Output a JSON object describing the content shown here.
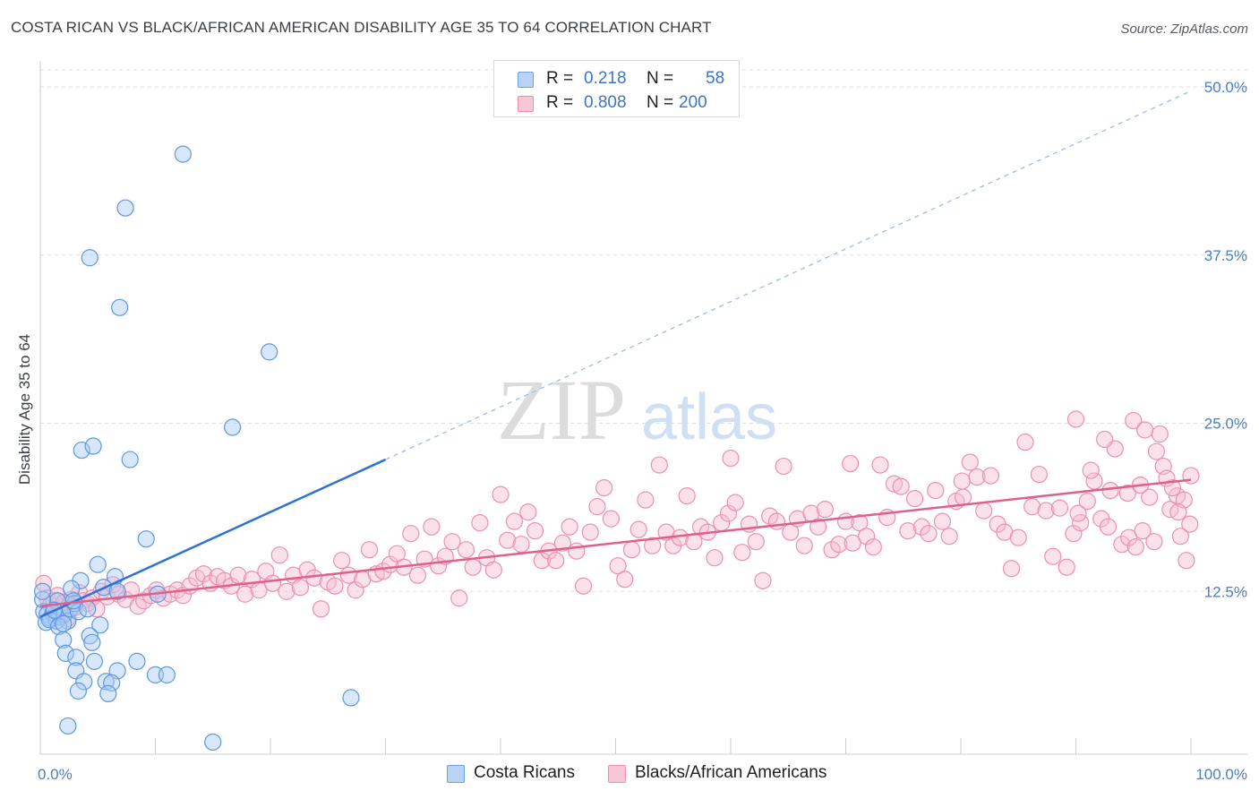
{
  "title": "COSTA RICAN VS BLACK/AFRICAN AMERICAN DISABILITY AGE 35 TO 64 CORRELATION CHART",
  "source": "Source: ZipAtlas.com",
  "watermark": {
    "zip": "ZIP",
    "atlas": "atlas"
  },
  "legend": {
    "rows": [
      {
        "r_label": "R =",
        "r_value": "0.218",
        "n_label": "N =",
        "n_value": "58",
        "color": "#7fb0ec"
      },
      {
        "r_label": "R =",
        "r_value": "0.808",
        "n_label": "N =",
        "n_value": "200",
        "color": "#f3a3bf"
      }
    ]
  },
  "bottom_legend": [
    {
      "label": "Costa Ricans",
      "color": "#7fb0ec"
    },
    {
      "label": "Blacks/African Americans",
      "color": "#f3a3bf"
    }
  ],
  "chart_data": {
    "type": "scatter",
    "title": "COSTA RICAN VS BLACK/AFRICAN AMERICAN DISABILITY AGE 35 TO 64 CORRELATION CHART",
    "xlabel": "",
    "ylabel": "Disability Age 35 to 64",
    "xlim": [
      0,
      100
    ],
    "ylim": [
      0,
      50
    ],
    "x_tick_labels": [
      "0.0%",
      "100.0%"
    ],
    "y_ticks": [
      12.5,
      25.0,
      37.5,
      50.0
    ],
    "y_tick_labels": [
      "12.5%",
      "25.0%",
      "37.5%",
      "50.0%"
    ],
    "grid": true,
    "legend_position": "top-center",
    "series": [
      {
        "name": "Costa Ricans",
        "color": "#7fb0ec",
        "line_color": "#2f72d6",
        "trend": {
          "x0": 0,
          "y0": 10.6,
          "x1": 30,
          "y1": 22.3,
          "dashed_to_x": 100,
          "dashed_to_y": 49.7
        },
        "points": [
          [
            12.4,
            45.0
          ],
          [
            7.4,
            41.0
          ],
          [
            4.3,
            37.3
          ],
          [
            6.9,
            33.6
          ],
          [
            19.9,
            30.3
          ],
          [
            16.7,
            24.7
          ],
          [
            3.6,
            23.0
          ],
          [
            4.6,
            23.3
          ],
          [
            7.8,
            22.3
          ],
          [
            9.2,
            16.4
          ],
          [
            5.0,
            14.5
          ],
          [
            3.5,
            13.3
          ],
          [
            6.5,
            13.6
          ],
          [
            1.5,
            11.8
          ],
          [
            2.7,
            12.7
          ],
          [
            5.5,
            12.8
          ],
          [
            0.3,
            11.0
          ],
          [
            0.6,
            10.8
          ],
          [
            0.9,
            10.5
          ],
          [
            1.1,
            10.9
          ],
          [
            1.4,
            10.3
          ],
          [
            1.7,
            10.6
          ],
          [
            2.1,
            10.8
          ],
          [
            2.4,
            10.3
          ],
          [
            2.6,
            11.2
          ],
          [
            3.0,
            11.6
          ],
          [
            3.3,
            11.0
          ],
          [
            0.5,
            10.2
          ],
          [
            0.8,
            10.4
          ],
          [
            1.2,
            11.1
          ],
          [
            1.6,
            9.9
          ],
          [
            2.0,
            10.1
          ],
          [
            2.9,
            11.8
          ],
          [
            4.1,
            11.2
          ],
          [
            0.2,
            11.9
          ],
          [
            5.2,
            10.0
          ],
          [
            4.3,
            9.2
          ],
          [
            6.7,
            12.5
          ],
          [
            10.2,
            12.3
          ],
          [
            2.0,
            8.9
          ],
          [
            4.5,
            8.7
          ],
          [
            2.2,
            7.9
          ],
          [
            3.1,
            7.6
          ],
          [
            6.7,
            6.6
          ],
          [
            3.1,
            6.6
          ],
          [
            4.7,
            7.3
          ],
          [
            8.4,
            7.3
          ],
          [
            10.0,
            6.3
          ],
          [
            11.0,
            6.3
          ],
          [
            5.7,
            5.8
          ],
          [
            3.8,
            5.8
          ],
          [
            6.2,
            5.7
          ],
          [
            3.3,
            5.1
          ],
          [
            5.9,
            4.9
          ],
          [
            2.4,
            2.5
          ],
          [
            27.0,
            4.6
          ],
          [
            15.0,
            1.3
          ],
          [
            0.2,
            12.5
          ]
        ]
      },
      {
        "name": "Blacks/African Americans",
        "color": "#f3a3bf",
        "line_color": "#e0608d",
        "trend": {
          "x0": 0,
          "y0": 11.4,
          "x1": 100,
          "y1": 20.8
        },
        "points": [
          [
            0.3,
            13.1
          ],
          [
            0.6,
            12.0
          ],
          [
            0.9,
            11.5
          ],
          [
            1.2,
            11.8
          ],
          [
            1.5,
            12.2
          ],
          [
            1.8,
            11.0
          ],
          [
            2.1,
            11.7
          ],
          [
            2.4,
            10.5
          ],
          [
            2.7,
            11.9
          ],
          [
            3.0,
            11.3
          ],
          [
            3.4,
            12.4
          ],
          [
            3.7,
            11.8
          ],
          [
            4.1,
            11.6
          ],
          [
            4.5,
            12.0
          ],
          [
            4.9,
            11.2
          ],
          [
            5.3,
            12.5
          ],
          [
            5.8,
            12.1
          ],
          [
            6.3,
            13.0
          ],
          [
            6.8,
            12.3
          ],
          [
            7.4,
            11.9
          ],
          [
            7.9,
            12.6
          ],
          [
            8.5,
            11.4
          ],
          [
            9.0,
            11.8
          ],
          [
            9.6,
            12.2
          ],
          [
            10.1,
            12.6
          ],
          [
            10.7,
            12.0
          ],
          [
            11.3,
            12.3
          ],
          [
            11.9,
            12.6
          ],
          [
            12.4,
            12.2
          ],
          [
            13.0,
            12.9
          ],
          [
            13.6,
            13.5
          ],
          [
            14.2,
            13.8
          ],
          [
            14.8,
            13.1
          ],
          [
            15.4,
            13.6
          ],
          [
            16.0,
            13.3
          ],
          [
            16.6,
            12.9
          ],
          [
            17.2,
            13.7
          ],
          [
            17.8,
            12.3
          ],
          [
            18.4,
            13.4
          ],
          [
            19.0,
            12.6
          ],
          [
            19.6,
            14.0
          ],
          [
            20.2,
            13.1
          ],
          [
            20.8,
            15.2
          ],
          [
            21.4,
            12.5
          ],
          [
            22.0,
            13.7
          ],
          [
            22.6,
            12.8
          ],
          [
            23.2,
            14.1
          ],
          [
            23.8,
            13.5
          ],
          [
            24.4,
            11.2
          ],
          [
            25.0,
            13.2
          ],
          [
            25.6,
            12.9
          ],
          [
            26.2,
            14.8
          ],
          [
            26.8,
            13.7
          ],
          [
            27.4,
            12.6
          ],
          [
            28.0,
            13.4
          ],
          [
            28.6,
            15.6
          ],
          [
            29.2,
            13.8
          ],
          [
            29.8,
            14.0
          ],
          [
            30.4,
            14.5
          ],
          [
            31.0,
            15.3
          ],
          [
            31.6,
            14.3
          ],
          [
            32.2,
            16.8
          ],
          [
            32.8,
            13.7
          ],
          [
            33.4,
            14.9
          ],
          [
            34.0,
            17.3
          ],
          [
            34.6,
            14.4
          ],
          [
            35.2,
            15.1
          ],
          [
            35.8,
            16.2
          ],
          [
            36.4,
            12.0
          ],
          [
            37.0,
            15.6
          ],
          [
            37.6,
            14.3
          ],
          [
            38.2,
            17.6
          ],
          [
            38.8,
            15.0
          ],
          [
            39.4,
            14.1
          ],
          [
            40.0,
            19.7
          ],
          [
            40.6,
            16.3
          ],
          [
            41.2,
            17.7
          ],
          [
            41.8,
            16.0
          ],
          [
            42.4,
            18.4
          ],
          [
            43.0,
            17.0
          ],
          [
            43.6,
            14.8
          ],
          [
            44.2,
            15.5
          ],
          [
            44.8,
            14.8
          ],
          [
            45.4,
            16.1
          ],
          [
            46.0,
            17.3
          ],
          [
            46.6,
            15.5
          ],
          [
            47.2,
            12.9
          ],
          [
            47.8,
            16.9
          ],
          [
            48.4,
            18.8
          ],
          [
            49.0,
            20.2
          ],
          [
            49.6,
            17.9
          ],
          [
            50.2,
            14.4
          ],
          [
            50.8,
            13.4
          ],
          [
            51.4,
            15.6
          ],
          [
            52.0,
            17.1
          ],
          [
            52.6,
            19.3
          ],
          [
            53.2,
            15.9
          ],
          [
            53.8,
            21.9
          ],
          [
            54.4,
            16.9
          ],
          [
            55.0,
            15.9
          ],
          [
            55.6,
            16.5
          ],
          [
            56.2,
            19.6
          ],
          [
            56.8,
            16.2
          ],
          [
            57.4,
            17.3
          ],
          [
            58.0,
            16.9
          ],
          [
            58.6,
            15.0
          ],
          [
            59.2,
            17.6
          ],
          [
            59.8,
            18.3
          ],
          [
            60.4,
            19.1
          ],
          [
            61.0,
            15.4
          ],
          [
            61.6,
            17.5
          ],
          [
            62.2,
            16.2
          ],
          [
            62.8,
            13.3
          ],
          [
            63.4,
            18.1
          ],
          [
            64.0,
            17.7
          ],
          [
            64.6,
            21.8
          ],
          [
            65.2,
            16.9
          ],
          [
            65.8,
            17.9
          ],
          [
            66.4,
            15.9
          ],
          [
            67.0,
            18.3
          ],
          [
            67.6,
            17.3
          ],
          [
            68.2,
            18.6
          ],
          [
            68.8,
            15.6
          ],
          [
            69.4,
            16.0
          ],
          [
            70.0,
            17.7
          ],
          [
            70.6,
            16.1
          ],
          [
            71.2,
            17.6
          ],
          [
            71.8,
            16.6
          ],
          [
            72.4,
            15.8
          ],
          [
            73.0,
            21.9
          ],
          [
            73.6,
            18.0
          ],
          [
            74.2,
            20.5
          ],
          [
            74.8,
            20.3
          ],
          [
            75.4,
            17.0
          ],
          [
            76.0,
            19.4
          ],
          [
            76.6,
            17.3
          ],
          [
            77.2,
            16.8
          ],
          [
            77.8,
            20.0
          ],
          [
            78.4,
            17.7
          ],
          [
            79.0,
            16.6
          ],
          [
            79.6,
            19.2
          ],
          [
            80.2,
            19.5
          ],
          [
            80.8,
            22.1
          ],
          [
            81.4,
            21.0
          ],
          [
            82.0,
            18.5
          ],
          [
            82.6,
            21.1
          ],
          [
            83.2,
            17.5
          ],
          [
            83.8,
            16.9
          ],
          [
            84.4,
            14.2
          ],
          [
            85.0,
            16.5
          ],
          [
            85.6,
            23.6
          ],
          [
            86.2,
            18.8
          ],
          [
            86.8,
            21.2
          ],
          [
            87.4,
            18.5
          ],
          [
            88.0,
            15.1
          ],
          [
            88.6,
            18.7
          ],
          [
            89.2,
            14.3
          ],
          [
            89.8,
            16.8
          ],
          [
            90.4,
            17.6
          ],
          [
            91.0,
            19.2
          ],
          [
            91.6,
            20.7
          ],
          [
            92.2,
            17.9
          ],
          [
            92.8,
            17.3
          ],
          [
            93.4,
            23.1
          ],
          [
            94.0,
            16.0
          ],
          [
            94.6,
            16.5
          ],
          [
            95.2,
            15.8
          ],
          [
            95.8,
            17.0
          ],
          [
            96.4,
            19.5
          ],
          [
            97.0,
            22.9
          ],
          [
            97.6,
            21.8
          ],
          [
            98.2,
            18.6
          ],
          [
            98.8,
            19.6
          ],
          [
            99.4,
            19.3
          ],
          [
            100.0,
            21.1
          ],
          [
            90.2,
            18.3
          ],
          [
            91.3,
            21.5
          ],
          [
            93.0,
            20.0
          ],
          [
            94.5,
            19.8
          ],
          [
            95.6,
            20.4
          ],
          [
            96.8,
            16.2
          ],
          [
            97.9,
            20.9
          ],
          [
            98.9,
            18.4
          ],
          [
            99.6,
            14.8
          ],
          [
            99.9,
            17.5
          ],
          [
            90.0,
            25.3
          ],
          [
            92.5,
            23.8
          ],
          [
            95.0,
            25.2
          ],
          [
            96.0,
            24.5
          ],
          [
            97.3,
            24.2
          ],
          [
            98.4,
            20.2
          ],
          [
            99.1,
            16.6
          ],
          [
            80.1,
            20.7
          ],
          [
            70.4,
            22.0
          ],
          [
            60.0,
            22.4
          ]
        ]
      }
    ]
  }
}
